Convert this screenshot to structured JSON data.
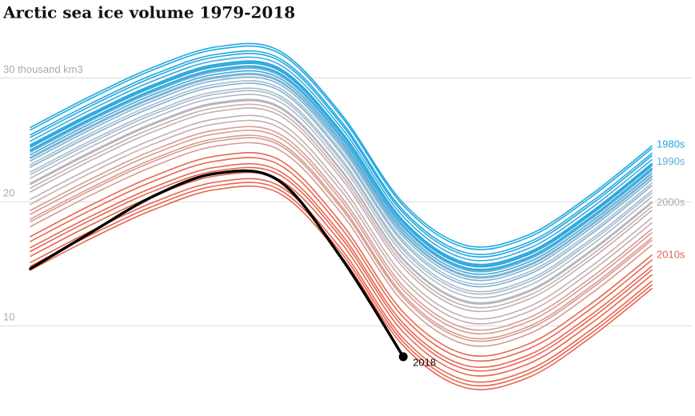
{
  "chart_data": {
    "type": "line",
    "title": "Arctic sea ice volume 1979-2018",
    "categories": [
      null,
      null,
      null,
      null,
      null,
      null,
      null,
      null,
      null,
      null,
      null
    ],
    "ylim": [
      3.3,
      33.7
    ],
    "yticks": [
      10,
      20,
      {
        "value": 30,
        "label": "30 thousand km3"
      }
    ],
    "grid": true,
    "series": [
      {
        "color": "#1fa8e0",
        "values": [
          26.0,
          28.6,
          30.9,
          32.5,
          32.2,
          27.1,
          19.9,
          16.5,
          17.3,
          20.5,
          24.5
        ]
      },
      {
        "color": "#1fa8e0",
        "values": [
          25.4,
          28.0,
          30.3,
          31.9,
          31.6,
          26.5,
          19.3,
          15.9,
          16.7,
          19.9,
          23.9
        ]
      },
      {
        "color": "#1fa8e0",
        "values": [
          24.6,
          27.2,
          29.5,
          31.1,
          30.8,
          25.7,
          18.5,
          15.1,
          15.9,
          19.1,
          23.1
        ]
      },
      {
        "color": "#1fa8e0",
        "values": [
          25.8,
          28.4,
          30.7,
          32.3,
          32.0,
          26.9,
          19.7,
          16.3,
          17.1,
          20.3,
          24.3
        ]
      },
      {
        "color": "#1fa8e0",
        "values": [
          25.2,
          27.8,
          30.1,
          31.7,
          31.4,
          26.3,
          19.1,
          15.7,
          16.5,
          19.7,
          23.7
        ]
      },
      {
        "color": "#1fa8e0",
        "values": [
          24.4,
          27.0,
          29.3,
          30.9,
          30.6,
          25.5,
          18.3,
          14.9,
          15.7,
          18.9,
          22.9
        ]
      },
      {
        "color": "#3aa9dc",
        "values": [
          24.9,
          27.5,
          29.8,
          31.4,
          31.1,
          26.0,
          18.8,
          15.4,
          16.2,
          19.4,
          23.4
        ]
      },
      {
        "color": "#3aa9dc",
        "values": [
          24.1,
          26.7,
          29.0,
          30.6,
          30.3,
          25.2,
          18.0,
          14.6,
          15.4,
          18.6,
          22.6
        ]
      },
      {
        "color": "#3aa9dc",
        "values": [
          24.5,
          27.1,
          29.4,
          31.0,
          30.7,
          25.6,
          18.4,
          15.0,
          15.8,
          19.0,
          23.0
        ]
      },
      {
        "color": "#3aa9dc",
        "values": [
          23.8,
          26.4,
          28.7,
          30.3,
          30.0,
          24.9,
          17.7,
          14.3,
          15.1,
          18.3,
          22.3
        ]
      },
      {
        "color": "#3aa9dc",
        "values": [
          24.2,
          26.8,
          29.1,
          30.7,
          30.4,
          25.3,
          18.1,
          14.7,
          15.5,
          18.7,
          22.7
        ]
      },
      {
        "color": "#7ab4d4",
        "values": [
          23.5,
          26.1,
          28.4,
          30.0,
          29.7,
          24.6,
          17.4,
          14.0,
          14.8,
          18.0,
          22.0
        ]
      },
      {
        "color": "#7ab4d4",
        "values": [
          24.0,
          26.6,
          28.9,
          30.5,
          30.2,
          25.1,
          17.9,
          14.5,
          15.3,
          18.5,
          22.5
        ]
      },
      {
        "color": "#7ab4d4",
        "values": [
          23.3,
          25.9,
          28.2,
          29.8,
          29.5,
          24.4,
          17.2,
          13.8,
          14.6,
          17.8,
          21.8
        ]
      },
      {
        "color": "#7ab4d4",
        "values": [
          22.8,
          25.4,
          27.7,
          29.3,
          29.0,
          23.9,
          16.7,
          13.3,
          14.1,
          17.3,
          21.3
        ]
      },
      {
        "color": "#7ab4d4",
        "values": [
          23.6,
          26.2,
          28.5,
          30.1,
          29.8,
          24.7,
          17.5,
          14.1,
          14.9,
          18.1,
          22.1
        ]
      },
      {
        "color": "#a9bac8",
        "values": [
          22.4,
          25.0,
          27.3,
          28.9,
          28.6,
          23.5,
          16.3,
          12.9,
          13.7,
          16.9,
          20.9
        ]
      },
      {
        "color": "#a9bac8",
        "values": [
          23.0,
          25.6,
          27.9,
          29.5,
          29.2,
          24.1,
          16.9,
          13.5,
          14.3,
          17.5,
          21.5
        ]
      },
      {
        "color": "#a9bac8",
        "values": [
          21.9,
          24.5,
          26.8,
          28.4,
          28.1,
          23.0,
          15.8,
          12.4,
          13.2,
          16.4,
          20.4
        ]
      },
      {
        "color": "#a9bac8",
        "values": [
          22.2,
          24.8,
          27.1,
          28.7,
          28.4,
          23.3,
          16.1,
          12.7,
          13.5,
          16.7,
          20.7
        ]
      },
      {
        "color": "#a9bac8",
        "values": [
          21.5,
          24.1,
          26.4,
          28.0,
          27.7,
          22.6,
          15.4,
          12.0,
          12.8,
          16.0,
          20.0
        ]
      },
      {
        "color": "#c4aeb0",
        "values": [
          21.4,
          24.0,
          26.3,
          27.9,
          27.6,
          22.5,
          15.3,
          11.9,
          12.7,
          15.9,
          19.9
        ]
      },
      {
        "color": "#c4aeb0",
        "values": [
          20.8,
          23.4,
          25.7,
          27.3,
          27.0,
          21.9,
          14.7,
          11.3,
          12.1,
          15.3,
          19.3
        ]
      },
      {
        "color": "#c4aeb0",
        "values": [
          21.1,
          23.7,
          26.0,
          27.6,
          27.3,
          22.2,
          15.0,
          11.6,
          12.4,
          15.6,
          19.6
        ]
      },
      {
        "color": "#c4aeb0",
        "values": [
          20.2,
          22.8,
          25.1,
          26.7,
          26.4,
          21.3,
          14.1,
          10.7,
          11.5,
          14.7,
          18.7
        ]
      },
      {
        "color": "#c4aeb0",
        "values": [
          19.8,
          22.4,
          24.7,
          26.3,
          26.0,
          20.9,
          13.7,
          10.3,
          11.1,
          14.3,
          18.3
        ]
      },
      {
        "color": "#d89a90",
        "values": [
          19.3,
          21.9,
          24.2,
          25.8,
          25.5,
          20.4,
          13.2,
          9.8,
          10.6,
          13.8,
          17.8
        ]
      },
      {
        "color": "#d89a90",
        "values": [
          19.0,
          21.6,
          23.9,
          25.5,
          25.2,
          20.1,
          12.9,
          9.5,
          10.3,
          13.5,
          17.5
        ]
      },
      {
        "color": "#d89a90",
        "values": [
          18.4,
          21.0,
          23.3,
          24.9,
          24.6,
          19.5,
          12.3,
          8.9,
          9.7,
          12.9,
          16.9
        ]
      },
      {
        "color": "#d89a90",
        "values": [
          18.0,
          20.6,
          22.9,
          24.5,
          24.2,
          19.1,
          11.9,
          8.5,
          9.3,
          12.5,
          16.5
        ]
      },
      {
        "color": "#d89a90",
        "values": [
          18.6,
          21.2,
          23.5,
          25.1,
          24.8,
          19.7,
          12.5,
          9.1,
          9.9,
          13.1,
          17.1
        ]
      },
      {
        "color": "#e8654f",
        "values": [
          16.8,
          19.4,
          21.7,
          23.3,
          23.0,
          17.9,
          10.7,
          7.3,
          8.1,
          11.3,
          15.3
        ]
      },
      {
        "color": "#e8654f",
        "values": [
          15.6,
          18.2,
          20.5,
          22.1,
          21.8,
          16.7,
          9.5,
          6.1,
          6.9,
          10.1,
          14.1
        ]
      },
      {
        "color": "#e8654f",
        "values": [
          14.8,
          17.4,
          19.7,
          21.3,
          21.0,
          15.9,
          8.7,
          5.3,
          6.1,
          9.3,
          13.3
        ]
      },
      {
        "color": "#e8654f",
        "values": [
          17.2,
          19.8,
          22.1,
          23.7,
          23.4,
          18.3,
          11.1,
          7.7,
          8.5,
          11.7,
          15.7
        ]
      },
      {
        "color": "#e8654f",
        "values": [
          16.0,
          18.6,
          20.9,
          22.5,
          22.2,
          17.1,
          9.9,
          6.5,
          7.3,
          10.5,
          14.5
        ]
      },
      {
        "color": "#e8654f",
        "values": [
          16.3,
          18.9,
          21.2,
          22.8,
          22.5,
          17.4,
          10.2,
          6.8,
          7.6,
          10.8,
          14.8
        ]
      },
      {
        "color": "#e8654f",
        "values": [
          14.5,
          17.1,
          19.4,
          21.0,
          20.7,
          15.6,
          8.4,
          5.0,
          5.8,
          9.0,
          13.0
        ]
      },
      {
        "color": "#e8654f",
        "values": [
          15.1,
          17.7,
          20.0,
          21.6,
          21.3,
          16.2,
          9.0,
          5.6,
          6.4,
          9.6,
          13.6
        ]
      },
      {
        "name": "2018",
        "color": "#000000",
        "values": [
          14.6,
          17.6,
          20.5,
          22.3,
          21.7,
          15.5,
          7.5,
          null,
          null,
          null,
          null
        ]
      }
    ],
    "annotations": [
      {
        "text": "1980s",
        "y": 24.6,
        "color": "#1fa8e0"
      },
      {
        "text": "1990s",
        "y": 23.2,
        "color": "#5aaed8"
      },
      {
        "text": "2000s",
        "y": 19.9,
        "color": "#a9a9b0"
      },
      {
        "text": "2010s",
        "y": 15.7,
        "color": "#e8654f"
      }
    ]
  }
}
